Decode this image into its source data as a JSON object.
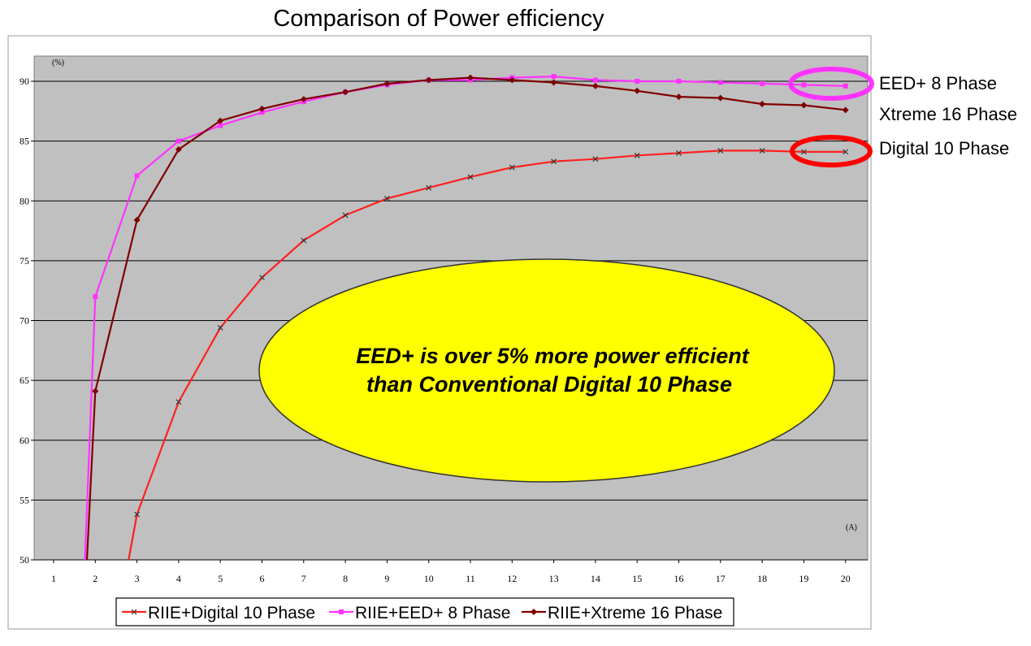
{
  "chart_data": {
    "type": "line",
    "title": "Comparison of Power efficiency",
    "y_unit": "(%)",
    "x_unit": "(A)",
    "xlabel": "",
    "ylabel": "",
    "x": [
      1,
      2,
      3,
      4,
      5,
      6,
      7,
      8,
      9,
      10,
      11,
      12,
      13,
      14,
      15,
      16,
      17,
      18,
      19,
      20
    ],
    "x_tick_labels": [
      "1",
      "2",
      "3",
      "4",
      "5",
      "6",
      "7",
      "8",
      "9",
      "10",
      "11",
      "12",
      "13",
      "14",
      "15",
      "16",
      "17",
      "18",
      "19",
      "20"
    ],
    "ylim": [
      50,
      90
    ],
    "y_ticks": [
      50,
      55,
      60,
      65,
      70,
      75,
      80,
      85,
      90
    ],
    "y_tick_labels": [
      "50",
      "55",
      "60",
      "65",
      "70",
      "75",
      "80",
      "85",
      "90"
    ],
    "grid": true,
    "legend_position": "bottom",
    "series": [
      {
        "name": "RIIE+Digital 10 Phase",
        "color": "#ff2020",
        "marker": "x",
        "points": [
          [
            2.8,
            50
          ],
          [
            3,
            53.8
          ],
          [
            4,
            63.2
          ],
          [
            5,
            69.4
          ],
          [
            6,
            73.6
          ],
          [
            7,
            76.7
          ],
          [
            8,
            78.8
          ],
          [
            9,
            80.2
          ],
          [
            10,
            81.1
          ],
          [
            11,
            82.0
          ],
          [
            12,
            82.8
          ],
          [
            13,
            83.3
          ],
          [
            14,
            83.5
          ],
          [
            15,
            83.8
          ],
          [
            16,
            84.0
          ],
          [
            17,
            84.2
          ],
          [
            18,
            84.2
          ],
          [
            19,
            84.1
          ],
          [
            20,
            84.1
          ]
        ]
      },
      {
        "name": "RIIE+EED+ 8 Phase",
        "color": "#ff33ff",
        "marker": "square",
        "points": [
          [
            1.75,
            50
          ],
          [
            2,
            72.0
          ],
          [
            3,
            82.1
          ],
          [
            4,
            85.0
          ],
          [
            5,
            86.3
          ],
          [
            6,
            87.4
          ],
          [
            7,
            88.3
          ],
          [
            8,
            89.1
          ],
          [
            9,
            89.7
          ],
          [
            10,
            90.1
          ],
          [
            11,
            90.1
          ],
          [
            12,
            90.3
          ],
          [
            13,
            90.4
          ],
          [
            14,
            90.1
          ],
          [
            15,
            90.0
          ],
          [
            16,
            90.0
          ],
          [
            17,
            89.9
          ],
          [
            18,
            89.8
          ],
          [
            19,
            89.7
          ],
          [
            20,
            89.6
          ]
        ]
      },
      {
        "name": "RIIE+Xtreme 16 Phase",
        "color": "#800000",
        "marker": "diamond",
        "points": [
          [
            1.8,
            50
          ],
          [
            2,
            64.1
          ],
          [
            3,
            78.4
          ],
          [
            4,
            84.3
          ],
          [
            5,
            86.7
          ],
          [
            6,
            87.7
          ],
          [
            7,
            88.5
          ],
          [
            8,
            89.1
          ],
          [
            9,
            89.8
          ],
          [
            10,
            90.1
          ],
          [
            11,
            90.3
          ],
          [
            12,
            90.1
          ],
          [
            13,
            89.9
          ],
          [
            14,
            89.6
          ],
          [
            15,
            89.2
          ],
          [
            16,
            88.7
          ],
          [
            17,
            88.6
          ],
          [
            18,
            88.1
          ],
          [
            19,
            88.0
          ],
          [
            20,
            87.6
          ]
        ]
      }
    ],
    "annotations": {
      "side_labels": [
        "EED+ 8 Phase",
        "Xtreme 16 Phase",
        "Digital 10 Phase"
      ],
      "callout_line1": "EED+ is over 5% more power efficient",
      "callout_line2": "than Conventional Digital 10 Phase"
    },
    "colors": {
      "plot_background": "#c0c0c0",
      "callout_fill": "#ffff00",
      "eed_circle": "#ff33ff",
      "digital_circle": "#ff0000"
    }
  }
}
